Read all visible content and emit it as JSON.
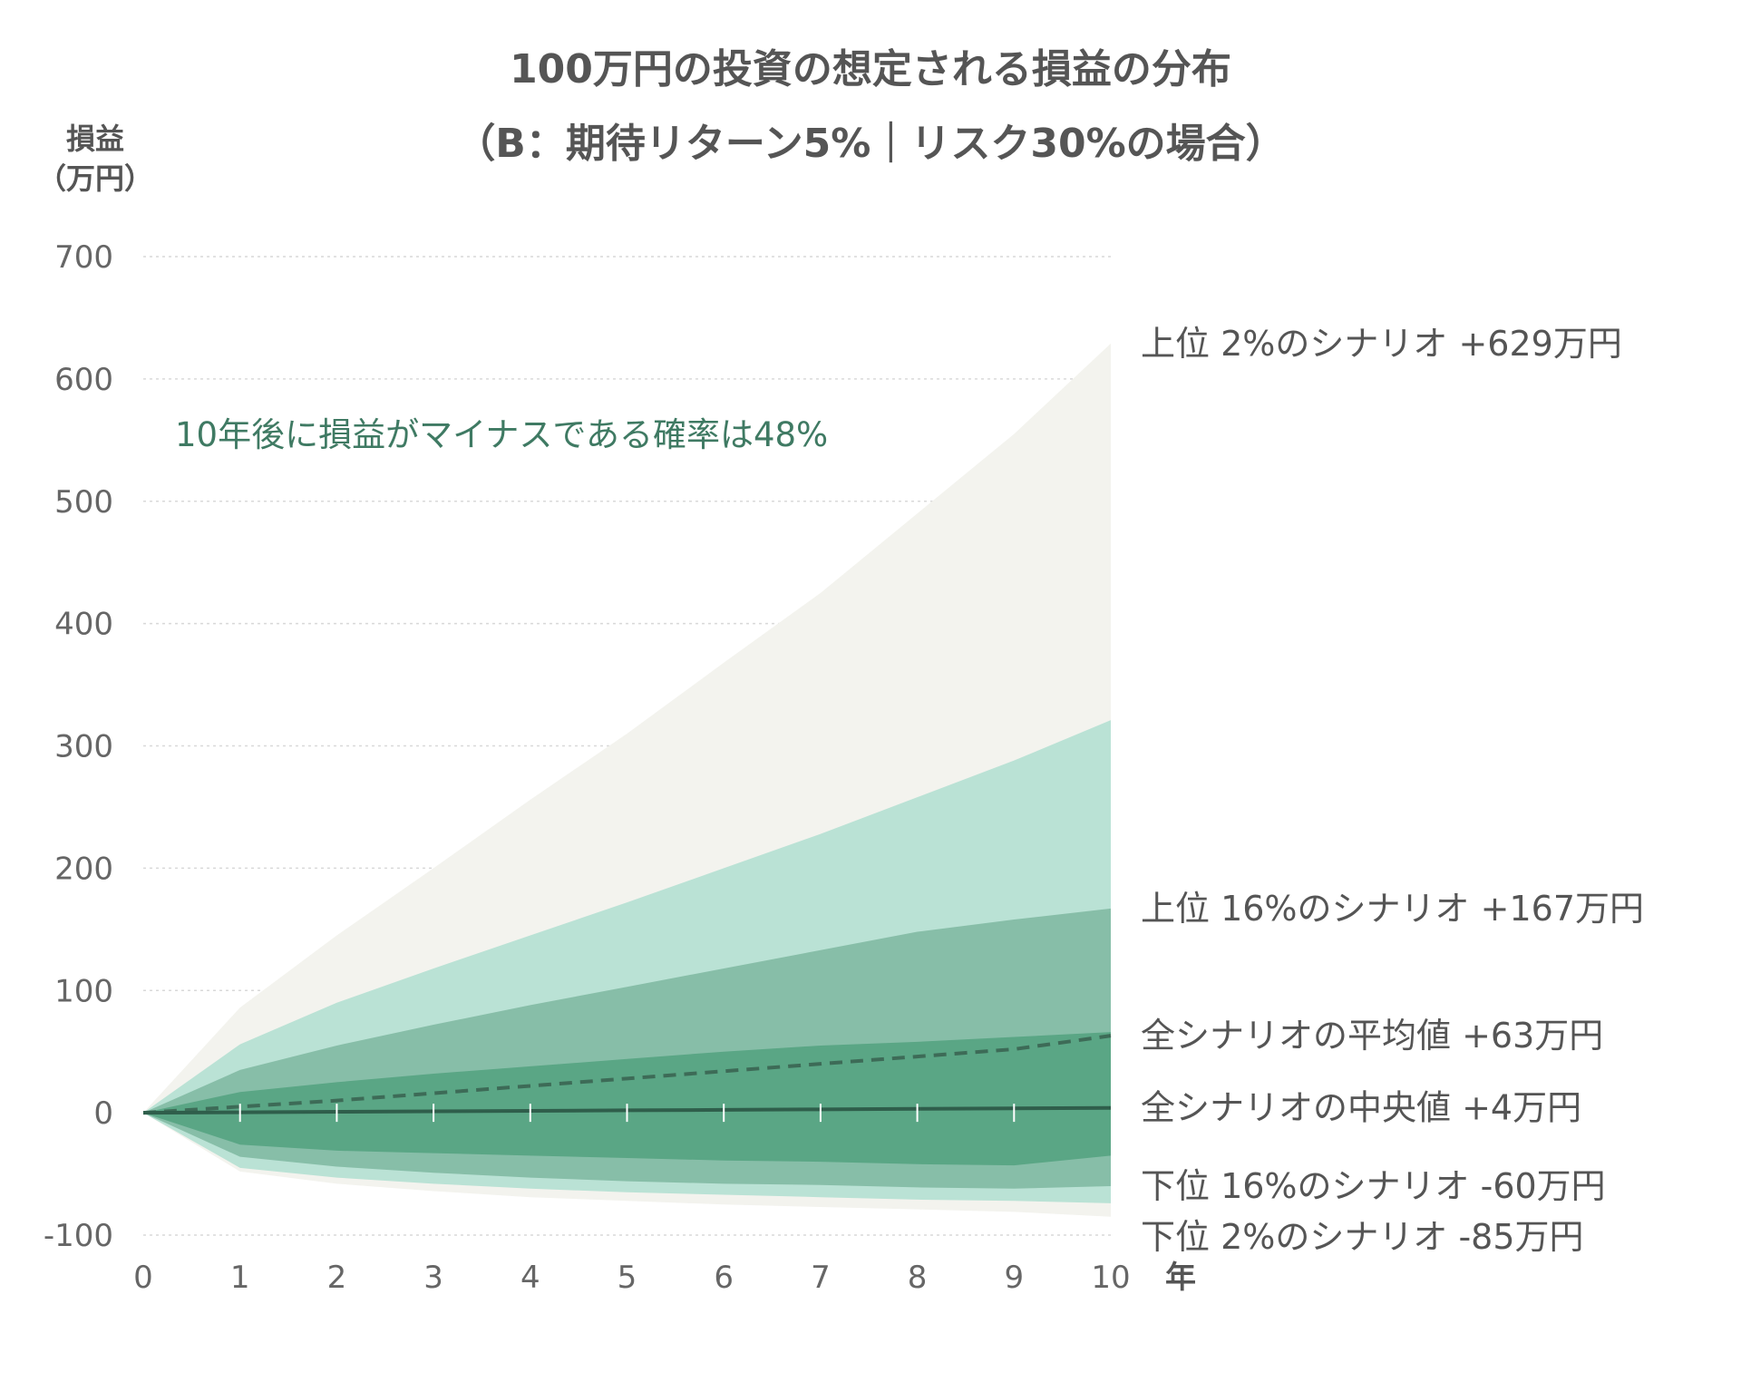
{
  "chart_data": {
    "type": "area",
    "title": "100万円の投資の想定される損益の分布",
    "subtitle": "（B：期待リターン5%｜リスク30%の場合）",
    "ylabel_line1": "損益",
    "ylabel_line2": "（万円）",
    "xunit": "年",
    "ylim": [
      -100,
      700
    ],
    "y_ticks": [
      -100,
      0,
      100,
      200,
      300,
      400,
      500,
      600,
      700
    ],
    "x": [
      0,
      1,
      2,
      3,
      4,
      5,
      6,
      7,
      8,
      9,
      10
    ],
    "grid": true,
    "colors": {
      "outer": "#f3f3ee",
      "mid": "#bae2d5",
      "inner": "#87bea8",
      "core": "#5aa685",
      "median": "#2f5e4b",
      "mean": "#3d6b57"
    },
    "bands": {
      "upper_2": [
        0,
        86,
        145,
        200,
        256,
        310,
        368,
        425,
        490,
        555,
        629
      ],
      "upper_16": [
        0,
        56,
        90,
        118,
        145,
        172,
        200,
        228,
        258,
        288,
        321
      ],
      "upper_50": [
        0,
        35,
        55,
        72,
        88,
        103,
        118,
        133,
        148,
        158,
        167
      ],
      "upper_84": [
        0,
        17,
        25,
        32,
        38,
        44,
        50,
        55,
        58,
        62,
        66
      ],
      "lower_16": [
        0,
        -26,
        -31,
        -33,
        -35,
        -37,
        -39,
        -40,
        -42,
        -43,
        -35
      ],
      "lower_50": [
        0,
        -36,
        -44,
        -49,
        -53,
        -56,
        -58,
        -59,
        -61,
        -62,
        -60
      ],
      "lower_84": [
        0,
        -45,
        -53,
        -58,
        -62,
        -65,
        -67,
        -69,
        -71,
        -72,
        -74
      ],
      "lower_98": [
        0,
        -48,
        -58,
        -64,
        -69,
        -72,
        -75,
        -77,
        -79,
        -81,
        -85
      ]
    },
    "series": [
      {
        "name": "全シナリオの平均値",
        "style": "dashed",
        "values": [
          0,
          5,
          10,
          16,
          22,
          28,
          34,
          40,
          46,
          52,
          63
        ]
      },
      {
        "name": "全シナリオの中央値",
        "style": "solid",
        "values": [
          0,
          0.4,
          0.8,
          1.2,
          1.6,
          2,
          2.4,
          2.8,
          3.2,
          3.6,
          4
        ]
      }
    ],
    "end_labels": [
      {
        "text": "上位 2%のシナリオ +629万円",
        "value": 629
      },
      {
        "text": "上位 16%のシナリオ +167万円",
        "value": 167
      },
      {
        "text": "全シナリオの平均値 +63万円",
        "value": 63
      },
      {
        "text": "全シナリオの中央値 +4万円",
        "value": 4
      },
      {
        "text": "下位 16%のシナリオ -60万円",
        "value": -60
      },
      {
        "text": "下位 2%のシナリオ -85万円",
        "value": -85
      }
    ],
    "annotation": "10年後に損益がマイナスである確率は48%"
  }
}
